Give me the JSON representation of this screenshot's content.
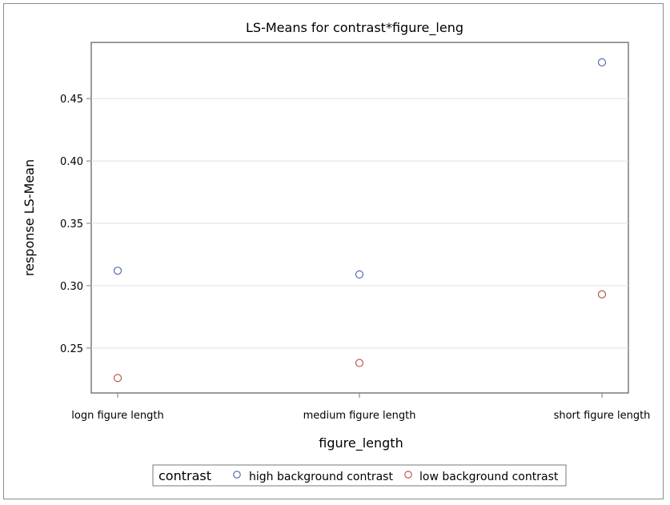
{
  "chart_data": {
    "type": "scatter",
    "title": "LS-Means for contrast*figure_leng",
    "xlabel": "figure_length",
    "ylabel": "response LS-Mean",
    "categories": [
      "logn figure length",
      "medium figure length",
      "short figure length"
    ],
    "y_ticks": [
      "0.25",
      "0.30",
      "0.35",
      "0.40",
      "0.45"
    ],
    "ylim": [
      0.214,
      0.495
    ],
    "grid": true,
    "legend_position": "bottom",
    "legend_title": "contrast",
    "series": [
      {
        "name": "high background contrast",
        "color": "#4a5ea8",
        "marker": "open-circle",
        "values": [
          0.312,
          0.309,
          0.479
        ]
      },
      {
        "name": "low background contrast",
        "color": "#b34a3a",
        "marker": "open-circle",
        "values": [
          0.226,
          0.238,
          0.293
        ]
      }
    ]
  }
}
